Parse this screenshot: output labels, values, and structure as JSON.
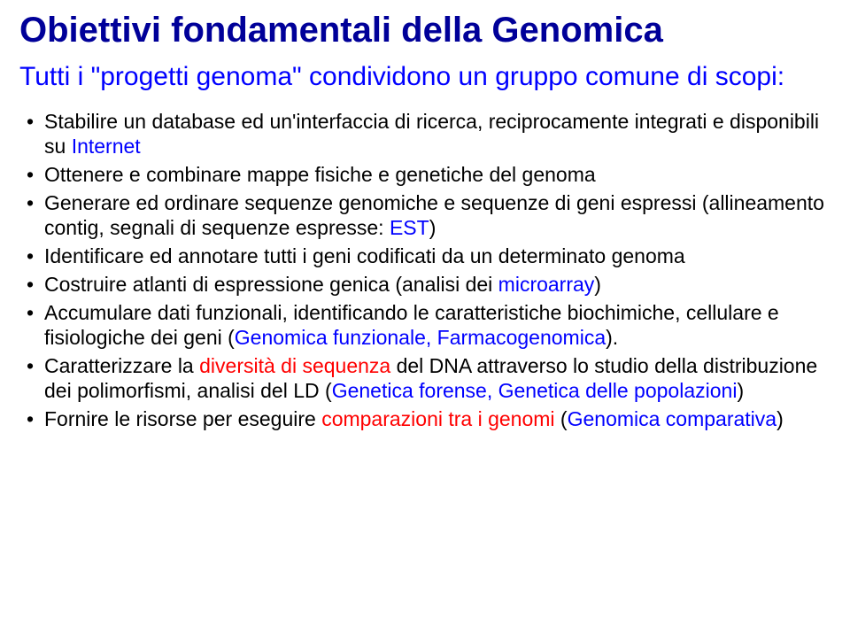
{
  "title": "Obiettivi fondamentali della Genomica",
  "subtitle_pre": "Tutti i ",
  "subtitle_quote": "\"progetti genoma\"",
  "subtitle_post": " condividono un gruppo comune di scopi:",
  "items": [
    {
      "pre": "Stabilire un database ed un'interfaccia di ricerca, reciprocamente integrati e disponibili su ",
      "hi": "Internet",
      "post": ""
    },
    {
      "pre": "Ottenere e combinare mappe fisiche e genetiche del genoma",
      "hi": "",
      "post": ""
    },
    {
      "pre": "Generare ed ordinare sequenze genomiche e sequenze di geni espressi (allineamento contig, segnali di sequenze espresse: ",
      "hi": "EST",
      "post": ")"
    },
    {
      "pre": "Identificare ed annotare tutti i geni codificati da un determinato genoma",
      "hi": "",
      "post": ""
    },
    {
      "pre": "Costruire atlanti di espressione genica (analisi dei ",
      "hi": "microarray",
      "post": ")"
    },
    {
      "pre": "Accumulare dati funzionali, identificando le caratteristiche biochimiche, cellulare e fisiologiche dei geni (",
      "hi": "Genomica funzionale, Farmacogenomica",
      "post": ")."
    },
    {
      "pre": "Caratterizzare la ",
      "hi": "diversità di sequenza",
      "post_mid": " del DNA attraverso lo studio della distribuzione dei polimorfismi, analisi del LD (",
      "hi2": "Genetica forense, Genetica delle popolazioni",
      "post": ")"
    },
    {
      "pre": "Fornire le risorse per eseguire ",
      "hi": "comparazioni tra i genomi",
      "post_mid": " (",
      "hi2": "Genomica comparativa",
      "post": ")"
    }
  ],
  "colors": {
    "title": "#000099",
    "subtitle": "#0000ff",
    "body": "#000000",
    "highlight": "#ff0000",
    "background": "#ffffff"
  },
  "fonts": {
    "family": "Arial",
    "title_size_pt": 30,
    "subtitle_size_pt": 22,
    "body_size_pt": 17
  }
}
